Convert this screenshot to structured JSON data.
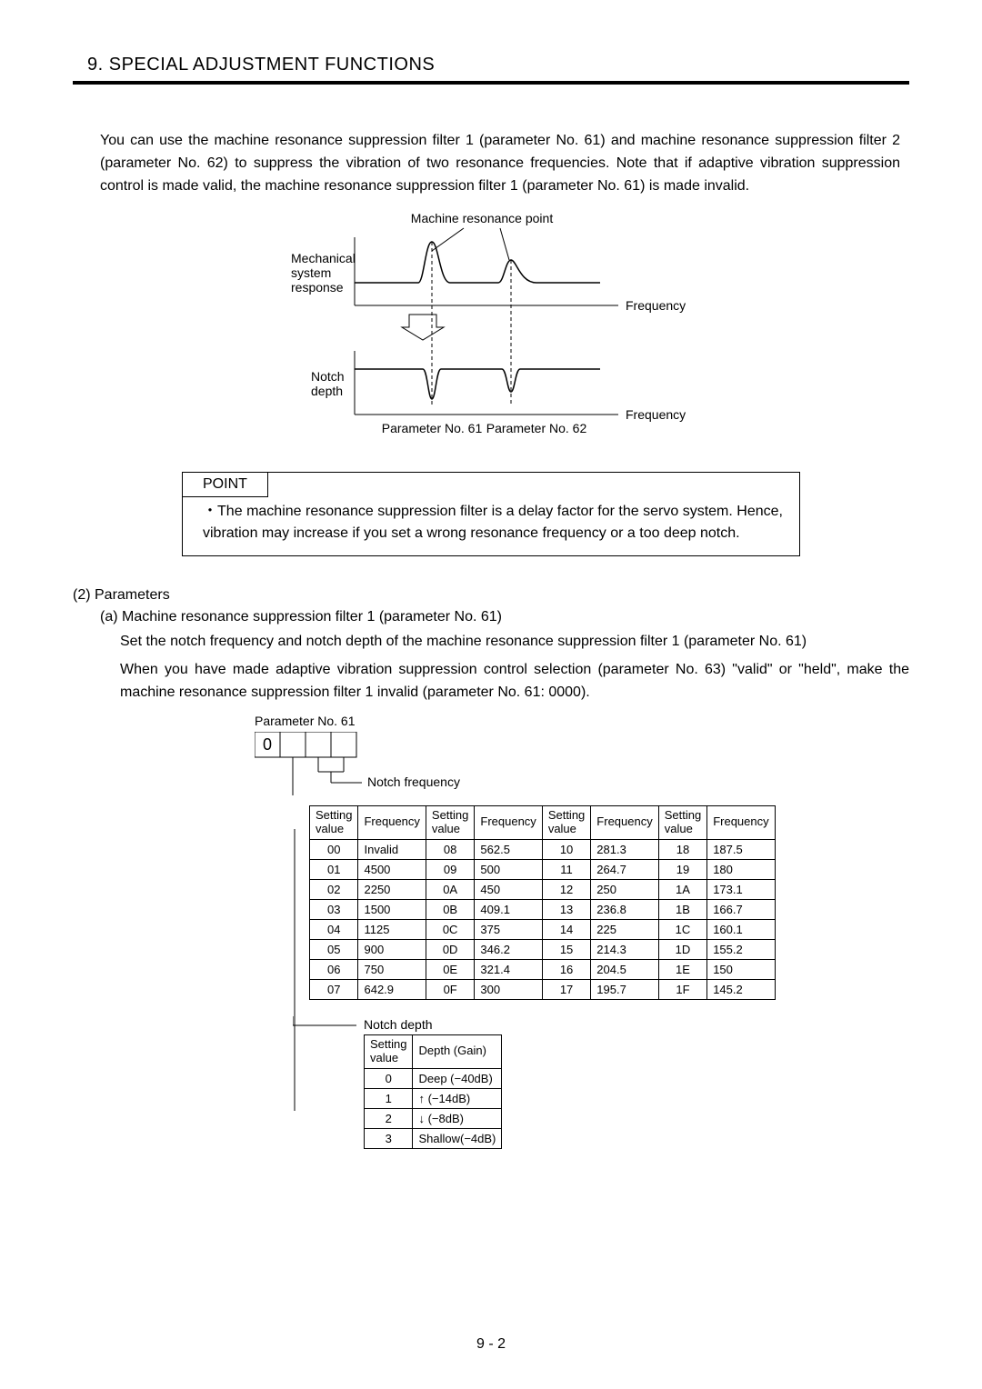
{
  "header": {
    "title": "9. SPECIAL ADJUSTMENT FUNCTIONS"
  },
  "intro": "You can use the machine resonance suppression filter 1 (parameter No. 61) and machine resonance suppression filter 2 (parameter No. 62) to suppress the vibration of two resonance frequencies. Note that if adaptive vibration suppression control is made valid, the machine resonance suppression filter 1 (parameter No. 61) is made invalid.",
  "diagram": {
    "top_label": "Machine resonance point",
    "left_upper": "Mechanical\nsystem\nresponse",
    "left_lower": "Notch\ndepth",
    "freq_label": "Frequency",
    "p61": "Parameter No. 61",
    "p62": "Parameter No. 62"
  },
  "point": {
    "header": "POINT",
    "bullet": "The machine resonance suppression filter is a delay factor for the servo system. Hence, vibration may increase if you set a wrong resonance frequency or a too deep notch."
  },
  "params": {
    "h1": "(2) Parameters",
    "h2": "(a) Machine resonance suppression filter 1 (parameter No. 61)",
    "p1": "Set the notch frequency and notch depth of the machine resonance suppression filter 1 (parameter No. 61)",
    "p2": "When you have made adaptive vibration suppression control selection (parameter No. 63) \"valid\" or \"held\", make the machine resonance suppression filter 1 invalid (parameter No. 61: 0000).",
    "box_label": "Parameter No. 61",
    "first_digit": "0",
    "nf_label": "Notch frequency",
    "nd_label": "Notch depth"
  },
  "freq_table": {
    "col_sv": "Setting\nvalue",
    "col_f": "Frequency",
    "rows": [
      [
        "00",
        "Invalid",
        "08",
        "562.5",
        "10",
        "281.3",
        "18",
        "187.5"
      ],
      [
        "01",
        "4500",
        "09",
        "500",
        "11",
        "264.7",
        "19",
        "180"
      ],
      [
        "02",
        "2250",
        "0A",
        "450",
        "12",
        "250",
        "1A",
        "173.1"
      ],
      [
        "03",
        "1500",
        "0B",
        "409.1",
        "13",
        "236.8",
        "1B",
        "166.7"
      ],
      [
        "04",
        "1125",
        "0C",
        "375",
        "14",
        "225",
        "1C",
        "160.1"
      ],
      [
        "05",
        "900",
        "0D",
        "346.2",
        "15",
        "214.3",
        "1D",
        "155.2"
      ],
      [
        "06",
        "750",
        "0E",
        "321.4",
        "16",
        "204.5",
        "1E",
        "150"
      ],
      [
        "07",
        "642.9",
        "0F",
        "300",
        "17",
        "195.7",
        "1F",
        "145.2"
      ]
    ]
  },
  "depth_table": {
    "col_sv": "Setting\nvalue",
    "col_d": "Depth (Gain)",
    "rows": [
      [
        "0",
        "Deep (−40dB)"
      ],
      [
        "1",
        "↑     (−14dB)"
      ],
      [
        "2",
        "↓       (−8dB)"
      ],
      [
        "3",
        "Shallow(−4dB)"
      ]
    ]
  },
  "page_num": "9 -  2",
  "colors": {
    "text": "#000000",
    "bg": "#ffffff"
  }
}
